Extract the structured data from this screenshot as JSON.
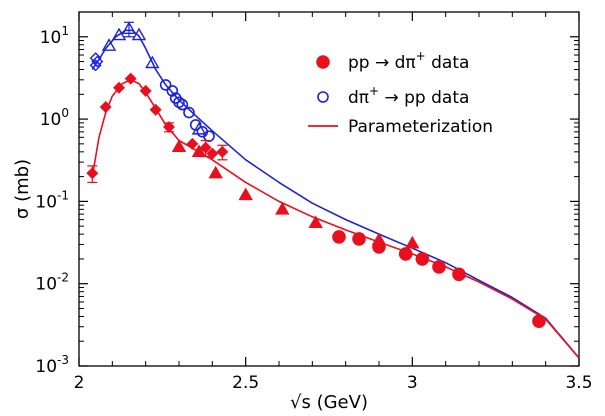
{
  "chart_data": {
    "type": "scatter",
    "title": "",
    "xlabel": "√s (GeV)",
    "ylabel": "σ (mb)",
    "xlim": [
      2.0,
      3.5
    ],
    "ylim": [
      0.001,
      20
    ],
    "yscale": "log",
    "grid": false,
    "legend_position": "top-right",
    "x_ticks": [
      {
        "value": 2.0,
        "label": "2"
      },
      {
        "value": 2.5,
        "label": "2.5"
      },
      {
        "value": 3.0,
        "label": "3"
      },
      {
        "value": 3.5,
        "label": "3.5"
      }
    ],
    "y_ticks": [
      {
        "value": 0.001,
        "base": "10",
        "exp": "-3"
      },
      {
        "value": 0.01,
        "base": "10",
        "exp": "-2"
      },
      {
        "value": 0.1,
        "base": "10",
        "exp": "-1"
      },
      {
        "value": 1,
        "base": "10",
        "exp": "0"
      },
      {
        "value": 10,
        "base": "10",
        "exp": "1"
      }
    ],
    "colors": {
      "red": "#e8101e",
      "blue": "#1c24d6"
    },
    "series": [
      {
        "name": "pp → dπ⁺ data",
        "legend": {
          "base": "pp → dπ",
          "sup": "+",
          "tail": " data"
        },
        "color": "#e8101e",
        "marker": "filled-circle",
        "diamonds": [
          {
            "x": 2.04,
            "y": 0.22,
            "err": 0.05
          },
          {
            "x": 2.08,
            "y": 1.4,
            "err": 0
          },
          {
            "x": 2.12,
            "y": 2.4,
            "err": 0
          },
          {
            "x": 2.155,
            "y": 3.1,
            "err": 0
          },
          {
            "x": 2.2,
            "y": 2.2,
            "err": 0
          },
          {
            "x": 2.23,
            "y": 1.3,
            "err": 0
          },
          {
            "x": 2.27,
            "y": 0.8,
            "err": 0.1
          },
          {
            "x": 2.34,
            "y": 0.5,
            "err": 0
          },
          {
            "x": 2.38,
            "y": 0.45,
            "err": 0.1
          },
          {
            "x": 2.4,
            "y": 0.38,
            "err": 0
          },
          {
            "x": 2.43,
            "y": 0.4,
            "err": 0.08
          }
        ],
        "triangles": [
          {
            "x": 2.3,
            "y": 0.46
          },
          {
            "x": 2.36,
            "y": 0.4
          },
          {
            "x": 2.41,
            "y": 0.22
          },
          {
            "x": 2.5,
            "y": 0.12
          },
          {
            "x": 2.61,
            "y": 0.08
          },
          {
            "x": 2.71,
            "y": 0.055
          },
          {
            "x": 2.9,
            "y": 0.034
          },
          {
            "x": 3.0,
            "y": 0.031
          }
        ],
        "circles": [
          {
            "x": 2.78,
            "y": 0.037
          },
          {
            "x": 2.84,
            "y": 0.035
          },
          {
            "x": 2.9,
            "y": 0.028
          },
          {
            "x": 2.98,
            "y": 0.023
          },
          {
            "x": 3.03,
            "y": 0.02
          },
          {
            "x": 3.08,
            "y": 0.016
          },
          {
            "x": 3.14,
            "y": 0.013
          },
          {
            "x": 3.38,
            "y": 0.0035
          }
        ]
      },
      {
        "name": "dπ⁺ → pp data",
        "legend": {
          "base": "dπ",
          "sup": "+",
          "tail": " → pp data"
        },
        "color": "#1c24d6",
        "marker": "open-circle",
        "diamonds": [
          {
            "x": 2.05,
            "y": 4.5
          },
          {
            "x": 2.05,
            "y": 5.5
          },
          {
            "x": 2.055,
            "y": 5.0
          }
        ],
        "triangles": [
          {
            "x": 2.09,
            "y": 7.8,
            "err": 0
          },
          {
            "x": 2.12,
            "y": 10.5,
            "err": 0
          },
          {
            "x": 2.15,
            "y": 12.5,
            "err": 2.5
          },
          {
            "x": 2.18,
            "y": 10.5,
            "err": 0
          },
          {
            "x": 2.22,
            "y": 4.8,
            "err": 0
          },
          {
            "x": 2.36,
            "y": 0.75,
            "err": 0
          }
        ],
        "circles": [
          {
            "x": 2.26,
            "y": 2.6
          },
          {
            "x": 2.28,
            "y": 2.2
          },
          {
            "x": 2.29,
            "y": 1.8
          },
          {
            "x": 2.3,
            "y": 1.6
          },
          {
            "x": 2.31,
            "y": 1.5
          },
          {
            "x": 2.33,
            "y": 1.2
          },
          {
            "x": 2.35,
            "y": 0.85
          },
          {
            "x": 2.37,
            "y": 0.7
          },
          {
            "x": 2.39,
            "y": 0.62
          }
        ]
      },
      {
        "name": "Parameterization",
        "legend": {
          "base": "Parameterization",
          "sup": "",
          "tail": ""
        },
        "color": "#e8101e",
        "marker": "line",
        "curve_pp": [
          {
            "x": 2.04,
            "y": 0.2
          },
          {
            "x": 2.06,
            "y": 0.6
          },
          {
            "x": 2.08,
            "y": 1.2
          },
          {
            "x": 2.1,
            "y": 1.9
          },
          {
            "x": 2.13,
            "y": 2.7
          },
          {
            "x": 2.155,
            "y": 3.0
          },
          {
            "x": 2.18,
            "y": 2.7
          },
          {
            "x": 2.2,
            "y": 2.1
          },
          {
            "x": 2.23,
            "y": 1.35
          },
          {
            "x": 2.26,
            "y": 0.85
          },
          {
            "x": 2.3,
            "y": 0.55
          },
          {
            "x": 2.35,
            "y": 0.42
          },
          {
            "x": 2.4,
            "y": 0.32
          },
          {
            "x": 2.5,
            "y": 0.17
          },
          {
            "x": 2.6,
            "y": 0.1
          },
          {
            "x": 2.7,
            "y": 0.065
          },
          {
            "x": 2.8,
            "y": 0.045
          },
          {
            "x": 2.9,
            "y": 0.032
          },
          {
            "x": 3.0,
            "y": 0.023
          },
          {
            "x": 3.1,
            "y": 0.016
          },
          {
            "x": 3.2,
            "y": 0.0105
          },
          {
            "x": 3.3,
            "y": 0.0065
          },
          {
            "x": 3.4,
            "y": 0.0037
          },
          {
            "x": 3.5,
            "y": 0.00125
          }
        ],
        "curve_dpi": [
          {
            "x": 2.04,
            "y": 4.0
          },
          {
            "x": 2.06,
            "y": 5.3
          },
          {
            "x": 2.08,
            "y": 7.2
          },
          {
            "x": 2.11,
            "y": 10.0
          },
          {
            "x": 2.14,
            "y": 12.0
          },
          {
            "x": 2.16,
            "y": 12.0
          },
          {
            "x": 2.18,
            "y": 10.2
          },
          {
            "x": 2.2,
            "y": 7.2
          },
          {
            "x": 2.23,
            "y": 4.0
          },
          {
            "x": 2.26,
            "y": 2.6
          },
          {
            "x": 2.3,
            "y": 1.7
          },
          {
            "x": 2.35,
            "y": 1.1
          },
          {
            "x": 2.4,
            "y": 0.72
          },
          {
            "x": 2.5,
            "y": 0.32
          },
          {
            "x": 2.6,
            "y": 0.17
          },
          {
            "x": 2.7,
            "y": 0.095
          },
          {
            "x": 2.8,
            "y": 0.06
          },
          {
            "x": 2.9,
            "y": 0.04
          },
          {
            "x": 3.0,
            "y": 0.027
          },
          {
            "x": 3.1,
            "y": 0.018
          },
          {
            "x": 3.2,
            "y": 0.011
          },
          {
            "x": 3.3,
            "y": 0.0068
          },
          {
            "x": 3.4,
            "y": 0.0038
          },
          {
            "x": 3.5,
            "y": 0.00125
          }
        ]
      }
    ]
  }
}
